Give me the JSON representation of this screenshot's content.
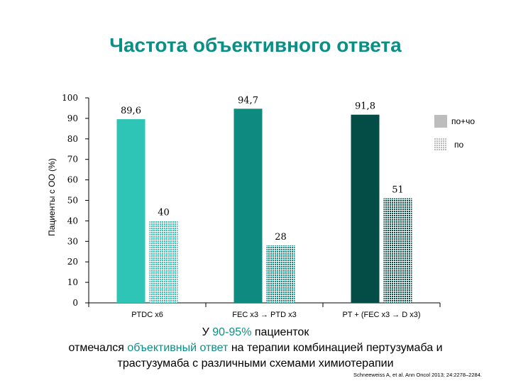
{
  "chart_data": {
    "type": "bar",
    "title": "Частота объективного ответа",
    "ylabel": "Пациенты с ОО (%)",
    "xlabel": "",
    "ylim": [
      0,
      100
    ],
    "yticks": [
      0,
      10,
      20,
      30,
      40,
      50,
      60,
      70,
      80,
      90,
      100
    ],
    "categories": [
      "PTDC x6",
      "FEC x3 → PTD x3",
      "PT + (FEC x3 → D x3)"
    ],
    "series": [
      {
        "name": "по+чо",
        "values": [
          89.6,
          94.7,
          91.8
        ],
        "value_labels": [
          "89,6",
          "94,7",
          "91,8"
        ]
      },
      {
        "name": "по",
        "values": [
          40,
          28,
          51
        ],
        "value_labels": [
          "40",
          "28",
          "51"
        ]
      }
    ],
    "legend_position": "right",
    "grid": false,
    "colors": {
      "bars_solid": [
        "#2ec4b6",
        "#0e8a80",
        "#044d46"
      ],
      "bars_hatched": [
        "#2ec4b6",
        "#0e8a80",
        "#044d46"
      ],
      "legend_solid": "#bdbdbd",
      "legend_hatched": "#bdbdbd",
      "title": "#0a8f86"
    }
  },
  "conclusion": {
    "line1_pre": "У ",
    "line1_accent": "90-95%",
    "line1_post": " пациенток",
    "line2_pre": "отмечался ",
    "line2_accent": "объективный ответ",
    "line2_post": " на терапии комбинацией пертузумаба и",
    "line3": "трастузумаба с различными схемами химиотерапии"
  },
  "source": "Schneeweiss A, et al. Ann Oncol 2013; 24:2278–2284."
}
